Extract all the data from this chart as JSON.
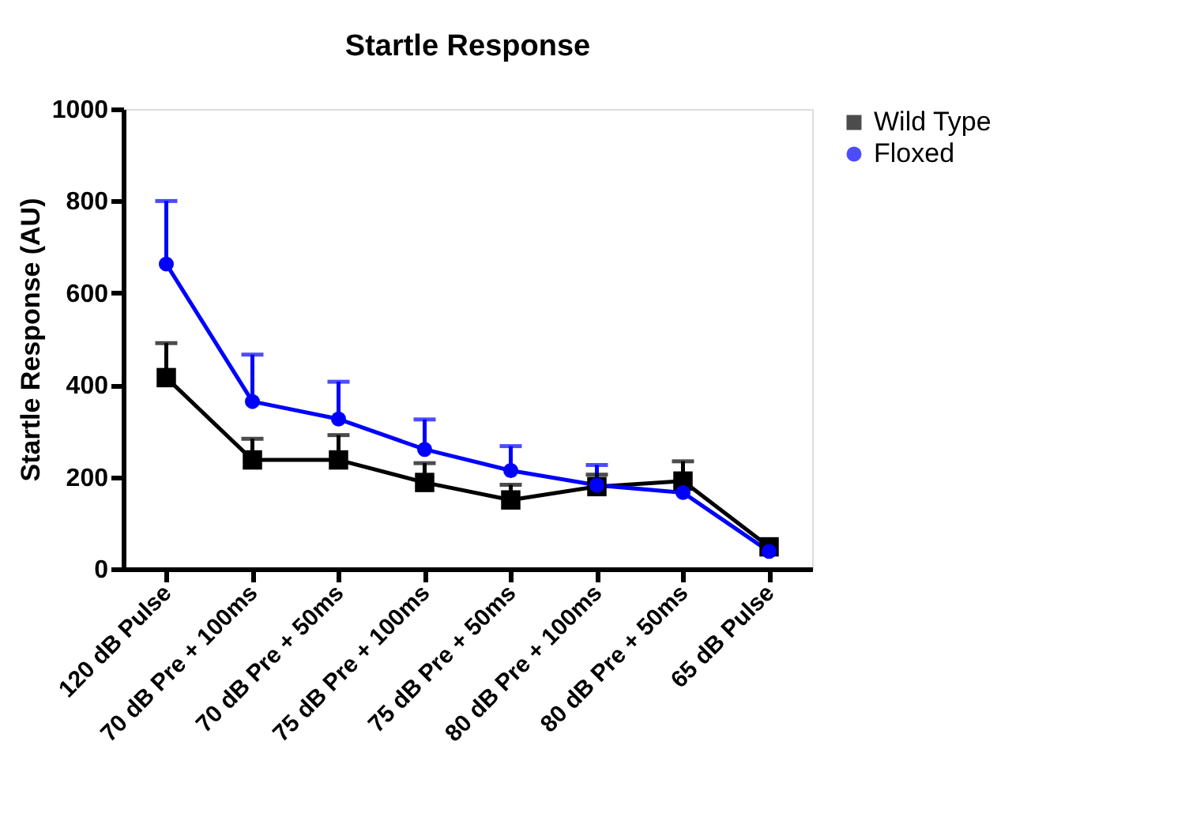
{
  "chart_data": {
    "type": "line",
    "title": "Startle Response",
    "ylabel": "Startle  Response (AU)",
    "categories": [
      "120 dB Pulse",
      "70 dB Pre + 100ms",
      "70 dB Pre + 50ms",
      "75 dB Pre + 100ms",
      "75 dB Pre + 50ms",
      "80 dB Pre + 100ms",
      "80 dB Pre + 50ms",
      "65 dB Pulse"
    ],
    "series": [
      {
        "name": "Wild Type",
        "color": "#000000",
        "marker": "square",
        "values": [
          416,
          237,
          237,
          188,
          150,
          179,
          191,
          48
        ],
        "errors": [
          [
            416,
            491
          ],
          [
            237,
            283
          ],
          [
            237,
            291
          ],
          [
            188,
            230
          ],
          [
            150,
            183
          ],
          [
            179,
            205
          ],
          [
            191,
            234
          ],
          null
        ]
      },
      {
        "name": "Floxed",
        "color": "#0000ff",
        "marker": "circle",
        "values": [
          663,
          364,
          326,
          260,
          214,
          182,
          166,
          38
        ],
        "errors": [
          [
            663,
            800
          ],
          [
            364,
            466
          ],
          [
            326,
            407
          ],
          [
            260,
            325
          ],
          [
            214,
            267
          ],
          [
            182,
            226
          ],
          null,
          null
        ]
      }
    ],
    "ylim": [
      0,
      1000
    ],
    "yticks": [
      0,
      200,
      400,
      600,
      800,
      1000
    ],
    "grid": false,
    "legend": "top right",
    "line_style": "solid"
  }
}
